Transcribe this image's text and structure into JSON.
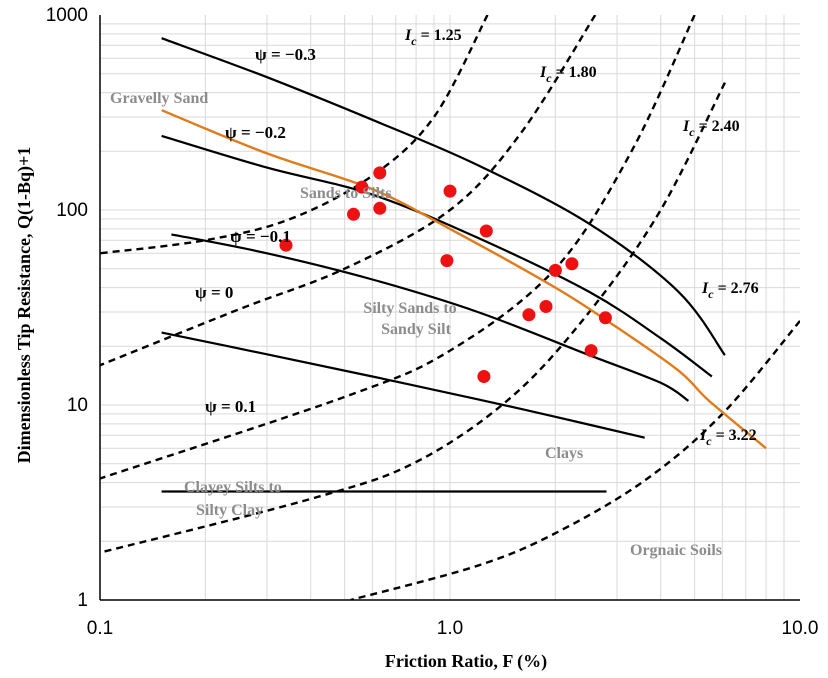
{
  "chart_data": {
    "type": "scatter",
    "xlabel": "Friction Ratio, F (%)",
    "ylabel": "Dimensionless Tip Resistance, Q(1-Bq)+1",
    "x_scale": "log",
    "y_scale": "log",
    "xlim": [
      0.1,
      10.0
    ],
    "ylim": [
      1,
      1000
    ],
    "x_ticks": [
      "0.1",
      "1.0",
      "10.0"
    ],
    "y_ticks": [
      "1",
      "10",
      "100",
      "1000"
    ],
    "grid": true,
    "colors": {
      "points": "#ee1111",
      "trend": "#e07b1a",
      "curves": "#000000",
      "zone_text": "#8c8c8c"
    },
    "points": [
      {
        "x": 0.34,
        "y": 66
      },
      {
        "x": 0.53,
        "y": 95
      },
      {
        "x": 0.56,
        "y": 131
      },
      {
        "x": 0.63,
        "y": 155
      },
      {
        "x": 0.63,
        "y": 102
      },
      {
        "x": 0.98,
        "y": 55
      },
      {
        "x": 1.0,
        "y": 125
      },
      {
        "x": 1.27,
        "y": 78
      },
      {
        "x": 1.25,
        "y": 14
      },
      {
        "x": 1.68,
        "y": 29
      },
      {
        "x": 1.88,
        "y": 32
      },
      {
        "x": 2.0,
        "y": 49
      },
      {
        "x": 2.23,
        "y": 53
      },
      {
        "x": 2.53,
        "y": 19
      },
      {
        "x": 2.78,
        "y": 28
      }
    ],
    "trend_line": [
      [
        0.15,
        325
      ],
      [
        0.3,
        195
      ],
      [
        0.6,
        128
      ],
      [
        1.0,
        80
      ],
      [
        2.0,
        40
      ],
      [
        3.0,
        25
      ],
      [
        4.5,
        15
      ],
      [
        5.5,
        10.5
      ],
      [
        8.0,
        6
      ]
    ],
    "ic_curves": [
      {
        "label": "I_c = 1.25",
        "points": [
          [
            1.28,
            1000
          ],
          [
            0.9,
            300
          ],
          [
            0.6,
            150
          ],
          [
            0.35,
            90
          ],
          [
            0.2,
            70
          ],
          [
            0.1,
            60
          ]
        ]
      },
      {
        "label": "I_c = 1.80",
        "points": [
          [
            2.6,
            1000
          ],
          [
            1.6,
            250
          ],
          [
            1.0,
            100
          ],
          [
            0.5,
            50
          ],
          [
            0.25,
            31
          ],
          [
            0.1,
            16
          ]
        ]
      },
      {
        "label": "I_c = 2.40",
        "points": [
          [
            5.0,
            1000
          ],
          [
            3.3,
            200
          ],
          [
            2.0,
            50
          ],
          [
            1.0,
            19
          ],
          [
            0.5,
            11
          ],
          [
            0.1,
            4.2
          ]
        ]
      },
      {
        "label": "I_c = 2.76",
        "points": [
          [
            6.1,
            450
          ],
          [
            4.0,
            100
          ],
          [
            2.5,
            30
          ],
          [
            1.5,
            11
          ],
          [
            0.8,
            5.1
          ],
          [
            0.4,
            3.3
          ],
          [
            0.1,
            1.75
          ]
        ]
      },
      {
        "label": "I_c = 3.22",
        "points": [
          [
            10.0,
            27
          ],
          [
            6.0,
            9
          ],
          [
            3.6,
            4.1
          ],
          [
            2.0,
            2.2
          ],
          [
            1.2,
            1.5
          ],
          [
            0.52,
            1.0
          ]
        ]
      }
    ],
    "psi_curves": [
      {
        "label": "ψ = −0.3",
        "points": [
          [
            0.15,
            760
          ],
          [
            0.3,
            480
          ],
          [
            0.6,
            290
          ],
          [
            1.2,
            170
          ],
          [
            2.5,
            85
          ],
          [
            4.5,
            38
          ],
          [
            6.1,
            18
          ]
        ]
      },
      {
        "label": "ψ = −0.2",
        "points": [
          [
            0.15,
            240
          ],
          [
            0.3,
            165
          ],
          [
            0.6,
            120
          ],
          [
            1.2,
            72
          ],
          [
            2.5,
            38
          ],
          [
            4.0,
            22
          ],
          [
            5.6,
            14
          ]
        ]
      },
      {
        "label": "ψ = −0.1",
        "points": [
          [
            0.16,
            75
          ],
          [
            0.3,
            60
          ],
          [
            0.6,
            44
          ],
          [
            1.2,
            30
          ],
          [
            2.5,
            18
          ],
          [
            4.0,
            13
          ],
          [
            4.8,
            10.5
          ]
        ]
      },
      {
        "label": "ψ = 0",
        "points": [
          [
            0.15,
            23.5
          ],
          [
            0.3,
            18.2
          ],
          [
            0.6,
            14
          ],
          [
            1.2,
            10.7
          ],
          [
            2.0,
            8.7
          ],
          [
            3.6,
            6.8
          ]
        ]
      },
      {
        "label": "ψ = 0.1",
        "points": [
          [
            0.15,
            3.6
          ],
          [
            0.3,
            3.6
          ],
          [
            0.6,
            3.6
          ],
          [
            1.2,
            3.6
          ],
          [
            2.0,
            3.6
          ],
          [
            2.8,
            3.6
          ]
        ]
      }
    ],
    "zone_labels": [
      "Gravelly Sand",
      "Sands to Silts",
      "Silty Sands to",
      "Sandy Silt",
      "Clays",
      "Clayey Silts to",
      "Silty Clay",
      "Orgnaic Soils"
    ],
    "psi_labels": [
      "ψ = −0.3",
      "ψ = −0.2",
      "ψ = −0.1",
      "ψ = 0",
      "ψ = 0.1"
    ],
    "ic_labels": [
      "I",
      "c",
      "= 1.25",
      "= 1.80",
      "= 2.40",
      "= 2.76",
      "= 3.22"
    ]
  }
}
